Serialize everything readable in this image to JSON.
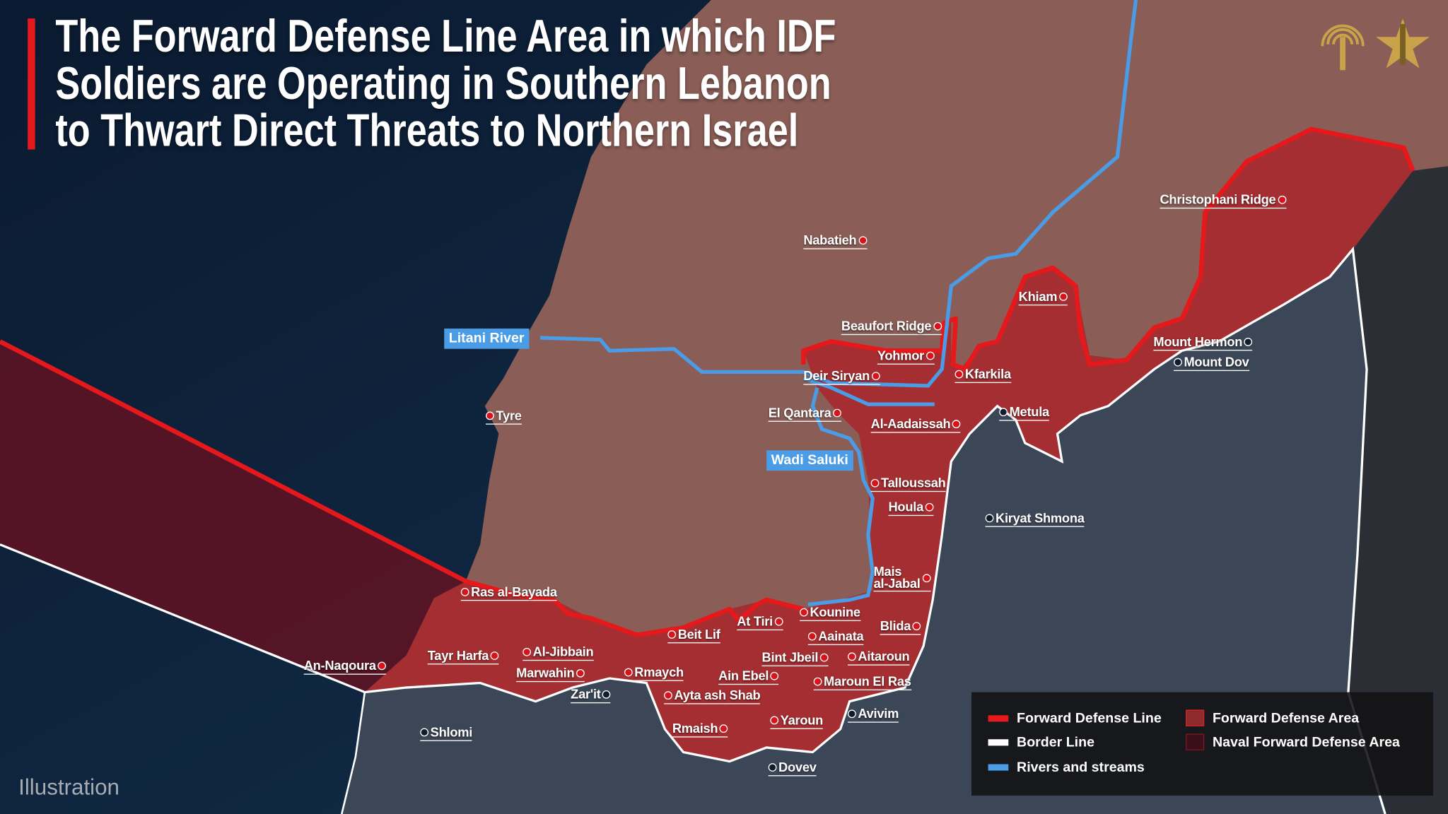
{
  "title": {
    "lines": [
      "The Forward Defense Line Area in which IDF",
      "Soldiers are Operating in Southern Lebanon",
      "to Thwart Direct Threats to Northern Israel"
    ],
    "accent_color": "#e5191c"
  },
  "logos": [
    "idf-spokesperson-logo",
    "idf-emblem-logo"
  ],
  "rivers": [
    {
      "label": "Litani River"
    },
    {
      "label": "Wadi Saluki"
    }
  ],
  "places": [
    {
      "name": "Nabatieh",
      "marker": "red"
    },
    {
      "name": "Beaufort Ridge",
      "marker": "red"
    },
    {
      "name": "Yohmor",
      "marker": "red"
    },
    {
      "name": "Deir Siryan",
      "marker": "red"
    },
    {
      "name": "Kfarkila",
      "marker": "red"
    },
    {
      "name": "El Qantara",
      "marker": "red"
    },
    {
      "name": "Al-Aadaissah",
      "marker": "red"
    },
    {
      "name": "Metula",
      "marker": "dark"
    },
    {
      "name": "Khiam",
      "marker": "red"
    },
    {
      "name": "Christophani Ridge",
      "marker": "red"
    },
    {
      "name": "Mount Hermon",
      "marker": "dark"
    },
    {
      "name": "Mount Dov",
      "marker": "dark"
    },
    {
      "name": "Tyre",
      "marker": "red"
    },
    {
      "name": "Talloussah",
      "marker": "red"
    },
    {
      "name": "Houla",
      "marker": "red"
    },
    {
      "name": "Kiryat Shmona",
      "marker": "dark"
    },
    {
      "name": "Mais al-Jabal",
      "marker": "red"
    },
    {
      "name": "Ras al-Bayada",
      "marker": "red"
    },
    {
      "name": "Kounine",
      "marker": "red"
    },
    {
      "name": "At Tiri",
      "marker": "red"
    },
    {
      "name": "Beit Lif",
      "marker": "red"
    },
    {
      "name": "Blida",
      "marker": "red"
    },
    {
      "name": "Aainata",
      "marker": "red"
    },
    {
      "name": "Al-Jibbain",
      "marker": "red"
    },
    {
      "name": "Tayr Harfa",
      "marker": "red"
    },
    {
      "name": "An-Naqoura",
      "marker": "red"
    },
    {
      "name": "Bint Jbeil",
      "marker": "red"
    },
    {
      "name": "Aitaroun",
      "marker": "red"
    },
    {
      "name": "Marwahin",
      "marker": "red"
    },
    {
      "name": "Rmaych",
      "marker": "red"
    },
    {
      "name": "Ain Ebel",
      "marker": "red"
    },
    {
      "name": "Maroun El Ras",
      "marker": "red"
    },
    {
      "name": "Zar'it",
      "marker": "dark"
    },
    {
      "name": "Ayta ash Shab",
      "marker": "red"
    },
    {
      "name": "Avivim",
      "marker": "dark"
    },
    {
      "name": "Yaroun",
      "marker": "red"
    },
    {
      "name": "Rmaish",
      "marker": "red"
    },
    {
      "name": "Shlomi",
      "marker": "dark"
    },
    {
      "name": "Dovev",
      "marker": "dark"
    }
  ],
  "legend": {
    "items": [
      {
        "label": "Forward Defense Line",
        "color": "#e5191c",
        "kind": "line"
      },
      {
        "label": "Border Line",
        "color": "#ffffff",
        "kind": "line"
      },
      {
        "label": "Rivers and streams",
        "color": "#4b9ce6",
        "kind": "line"
      },
      {
        "label": "Forward Defense Area",
        "color": "#8e2a2c",
        "kind": "area"
      },
      {
        "label": "Naval Forward Defense Area",
        "color": "#3a0f1a",
        "kind": "area"
      }
    ]
  },
  "footnote": "Illustration",
  "colors": {
    "sea": "#0c1d33",
    "lebanon_land": "#8a5e57",
    "israel_land": "#3b4656",
    "syria_land": "#2b2f35",
    "forward_area": "#a8262a",
    "naval_area": "#5a1424"
  }
}
